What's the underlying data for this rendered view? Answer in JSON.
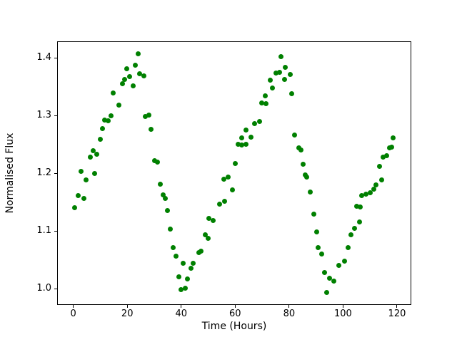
{
  "figure": {
    "background": "#ffffff",
    "frame_color": "#000000"
  },
  "chart_data": {
    "type": "scatter",
    "title": "",
    "xlabel": "Time (Hours)",
    "ylabel": "Normalised Flux",
    "marker_color": "#008000",
    "marker_size_px": 7,
    "grid": false,
    "legend": null,
    "xlim": [
      -6.0,
      125.3
    ],
    "ylim": [
      0.9717,
      1.429
    ],
    "xticks": [
      "0",
      "20",
      "40",
      "60",
      "80",
      "100",
      "120"
    ],
    "yticks": [
      "1.0",
      "1.1",
      "1.2",
      "1.3",
      "1.4"
    ],
    "points": [
      [
        0.4,
        1.141
      ],
      [
        1.7,
        1.161
      ],
      [
        2.8,
        1.204
      ],
      [
        4.0,
        1.157
      ],
      [
        4.8,
        1.188
      ],
      [
        6.3,
        1.228
      ],
      [
        7.4,
        1.239
      ],
      [
        7.9,
        1.2
      ],
      [
        8.8,
        1.233
      ],
      [
        10.0,
        1.259
      ],
      [
        10.9,
        1.277
      ],
      [
        11.5,
        1.292
      ],
      [
        12.8,
        1.291
      ],
      [
        14.0,
        1.3
      ],
      [
        14.8,
        1.339
      ],
      [
        16.9,
        1.318
      ],
      [
        18.1,
        1.355
      ],
      [
        19.1,
        1.363
      ],
      [
        19.8,
        1.381
      ],
      [
        20.9,
        1.368
      ],
      [
        22.1,
        1.352
      ],
      [
        22.9,
        1.387
      ],
      [
        24.0,
        1.407
      ],
      [
        24.7,
        1.373
      ],
      [
        26.2,
        1.369
      ],
      [
        26.8,
        1.298
      ],
      [
        28.1,
        1.301
      ],
      [
        28.7,
        1.276
      ],
      [
        30.2,
        1.222
      ],
      [
        31.3,
        1.219
      ],
      [
        32.2,
        1.181
      ],
      [
        33.2,
        1.163
      ],
      [
        34.0,
        1.157
      ],
      [
        34.9,
        1.135
      ],
      [
        35.9,
        1.103
      ],
      [
        36.9,
        1.071
      ],
      [
        38.2,
        1.056
      ],
      [
        39.2,
        1.02
      ],
      [
        39.8,
        0.998
      ],
      [
        40.8,
        1.044
      ],
      [
        41.6,
        1.001
      ],
      [
        42.3,
        1.017
      ],
      [
        43.7,
        1.035
      ],
      [
        44.3,
        1.044
      ],
      [
        46.5,
        1.062
      ],
      [
        47.4,
        1.065
      ],
      [
        48.9,
        1.094
      ],
      [
        50.1,
        1.087
      ],
      [
        50.3,
        1.122
      ],
      [
        51.8,
        1.118
      ],
      [
        54.2,
        1.147
      ],
      [
        55.7,
        1.19
      ],
      [
        56.0,
        1.151
      ],
      [
        57.5,
        1.193
      ],
      [
        59.1,
        1.171
      ],
      [
        60.0,
        1.217
      ],
      [
        61.0,
        1.251
      ],
      [
        62.3,
        1.262
      ],
      [
        62.5,
        1.249
      ],
      [
        63.9,
        1.25
      ],
      [
        64.1,
        1.275
      ],
      [
        65.9,
        1.263
      ],
      [
        67.2,
        1.286
      ],
      [
        69.0,
        1.29
      ],
      [
        69.9,
        1.322
      ],
      [
        71.1,
        1.335
      ],
      [
        71.5,
        1.321
      ],
      [
        73.1,
        1.362
      ],
      [
        73.8,
        1.348
      ],
      [
        75.2,
        1.374
      ],
      [
        76.5,
        1.375
      ],
      [
        76.9,
        1.403
      ],
      [
        78.3,
        1.363
      ],
      [
        78.7,
        1.384
      ],
      [
        80.4,
        1.372
      ],
      [
        80.9,
        1.338
      ],
      [
        82.0,
        1.266
      ],
      [
        83.5,
        1.244
      ],
      [
        84.4,
        1.241
      ],
      [
        85.3,
        1.216
      ],
      [
        85.9,
        1.197
      ],
      [
        86.6,
        1.194
      ],
      [
        87.9,
        1.167
      ],
      [
        89.1,
        1.129
      ],
      [
        90.1,
        1.099
      ],
      [
        90.8,
        1.071
      ],
      [
        92.1,
        1.06
      ],
      [
        93.2,
        1.028
      ],
      [
        93.9,
        0.993
      ],
      [
        95.0,
        1.018
      ],
      [
        96.7,
        1.013
      ],
      [
        98.5,
        1.04
      ],
      [
        100.5,
        1.048
      ],
      [
        102.0,
        1.071
      ],
      [
        102.9,
        1.094
      ],
      [
        104.2,
        1.105
      ],
      [
        105.1,
        1.143
      ],
      [
        106.0,
        1.116
      ],
      [
        106.5,
        1.142
      ],
      [
        107.0,
        1.162
      ],
      [
        108.6,
        1.164
      ],
      [
        110.2,
        1.166
      ],
      [
        111.3,
        1.172
      ],
      [
        112.1,
        1.18
      ],
      [
        113.5,
        1.212
      ],
      [
        114.2,
        1.189
      ],
      [
        114.8,
        1.228
      ],
      [
        116.2,
        1.231
      ],
      [
        117.2,
        1.244
      ],
      [
        118.1,
        1.245
      ],
      [
        118.6,
        1.261
      ]
    ]
  }
}
